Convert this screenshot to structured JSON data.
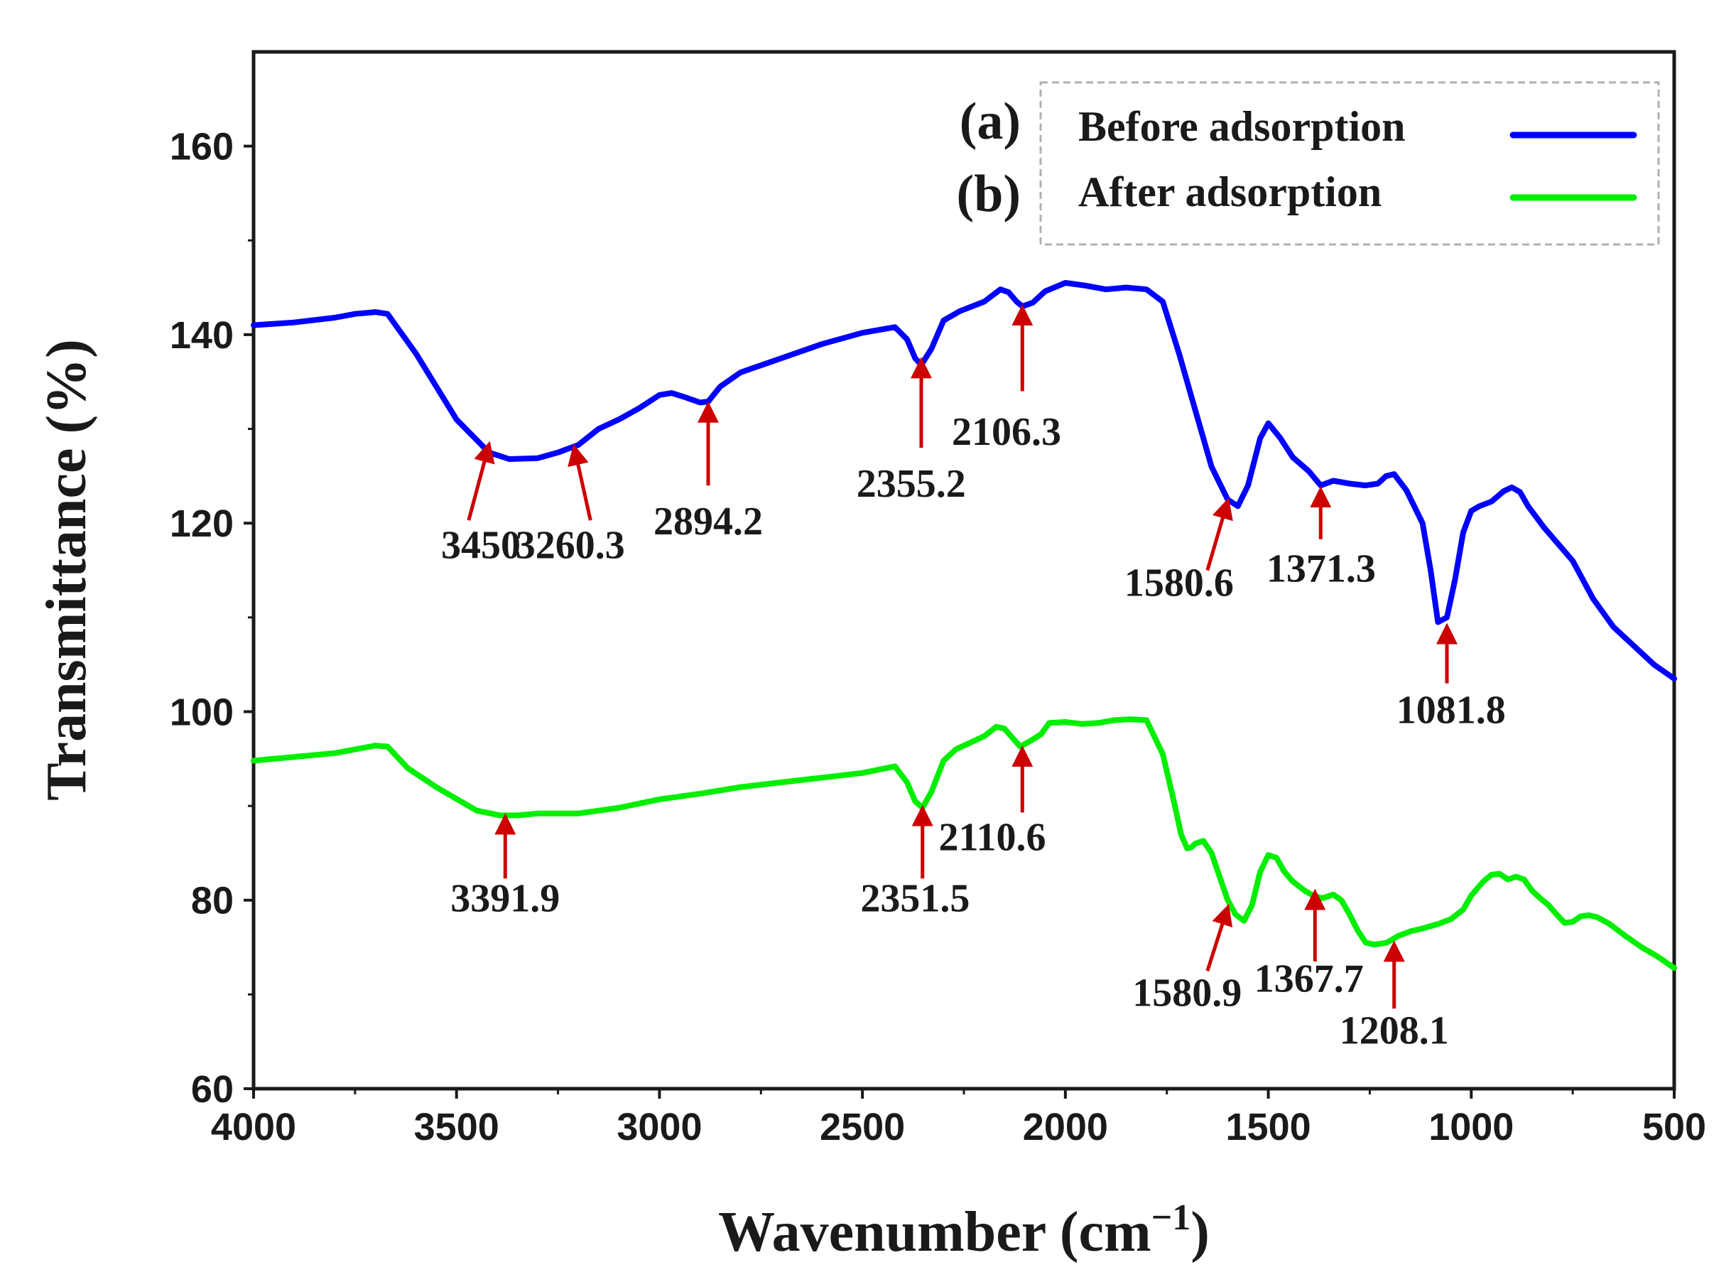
{
  "chart_data": {
    "type": "line",
    "xlabel_main": "Wavenumber (cm",
    "xlabel_sup": "−1",
    "xlabel_end": ")",
    "ylabel": "Transmittance (%)",
    "xlim": [
      4000,
      500
    ],
    "ylim": [
      60,
      170
    ],
    "xticks": [
      4000,
      3500,
      3000,
      2500,
      2000,
      1500,
      1000,
      500
    ],
    "yticks": [
      60,
      80,
      100,
      120,
      140,
      160
    ],
    "series": [
      {
        "name": "Before adsorption",
        "key": "(a)",
        "color": "#0000ff",
        "x": [
          4000,
          3900,
          3800,
          3750,
          3700,
          3670,
          3600,
          3500,
          3420,
          3370,
          3300,
          3250,
          3200,
          3150,
          3100,
          3050,
          3000,
          2970,
          2940,
          2900,
          2880,
          2850,
          2800,
          2700,
          2600,
          2500,
          2420,
          2390,
          2370,
          2355,
          2330,
          2300,
          2260,
          2200,
          2160,
          2140,
          2120,
          2106,
          2080,
          2050,
          2000,
          1950,
          1900,
          1850,
          1800,
          1760,
          1720,
          1680,
          1640,
          1600,
          1575,
          1550,
          1520,
          1500,
          1470,
          1440,
          1400,
          1371,
          1340,
          1300,
          1260,
          1230,
          1210,
          1190,
          1160,
          1120,
          1100,
          1082,
          1060,
          1040,
          1020,
          1000,
          980,
          950,
          920,
          900,
          880,
          860,
          820,
          780,
          750,
          700,
          650,
          600,
          550,
          500
        ],
        "y": [
          141,
          141.3,
          141.8,
          142.2,
          142.4,
          142.2,
          138,
          131,
          127.5,
          126.8,
          126.9,
          127.5,
          128.3,
          130,
          131,
          132.2,
          133.6,
          133.8,
          133.4,
          132.8,
          132.9,
          134.5,
          136,
          137.5,
          139,
          140.2,
          140.8,
          139.5,
          137.5,
          136.8,
          138.5,
          141.5,
          142.5,
          143.5,
          144.8,
          144.5,
          143.5,
          143,
          143.4,
          144.6,
          145.5,
          145.2,
          144.8,
          145,
          144.8,
          143.5,
          138,
          132,
          126,
          122.5,
          121.8,
          124,
          129,
          130.6,
          129,
          127,
          125.5,
          124,
          124.5,
          124.2,
          124,
          124.2,
          125,
          125.2,
          123.5,
          120,
          115,
          109.5,
          110,
          114,
          119,
          121.3,
          121.8,
          122.3,
          123.4,
          123.8,
          123.3,
          121.8,
          119.5,
          117.5,
          116,
          112,
          109,
          107,
          105,
          103.5
        ]
      },
      {
        "name": "After adsorption",
        "key": "(b)",
        "color": "#00ee00",
        "x": [
          4000,
          3900,
          3800,
          3750,
          3700,
          3670,
          3620,
          3550,
          3450,
          3392,
          3350,
          3300,
          3200,
          3100,
          3000,
          2900,
          2800,
          2700,
          2600,
          2500,
          2420,
          2390,
          2370,
          2352,
          2330,
          2300,
          2270,
          2230,
          2200,
          2170,
          2150,
          2130,
          2111,
          2090,
          2060,
          2040,
          2000,
          1960,
          1920,
          1880,
          1840,
          1800,
          1760,
          1730,
          1715,
          1700,
          1690,
          1680,
          1660,
          1640,
          1620,
          1600,
          1581,
          1560,
          1540,
          1520,
          1500,
          1480,
          1460,
          1440,
          1410,
          1390,
          1368,
          1340,
          1320,
          1300,
          1280,
          1260,
          1240,
          1220,
          1208,
          1180,
          1150,
          1120,
          1080,
          1050,
          1020,
          1000,
          970,
          950,
          930,
          910,
          890,
          870,
          850,
          830,
          810,
          790,
          770,
          750,
          730,
          710,
          690,
          660,
          620,
          580,
          540,
          500
        ],
        "y": [
          94.8,
          95.2,
          95.6,
          96,
          96.4,
          96.3,
          94,
          92,
          89.5,
          89,
          89,
          89.2,
          89.2,
          89.8,
          90.7,
          91.3,
          92,
          92.5,
          93,
          93.5,
          94.2,
          92.5,
          90.5,
          89.8,
          91.5,
          94.8,
          96,
          96.8,
          97.4,
          98.4,
          98.2,
          97.2,
          96.3,
          96.8,
          97.6,
          98.8,
          98.9,
          98.7,
          98.8,
          99.1,
          99.2,
          99.1,
          95.5,
          90,
          87,
          85.5,
          85.6,
          86,
          86.3,
          85,
          82.5,
          80,
          78.5,
          77.8,
          79.5,
          83,
          84.8,
          84.5,
          83,
          82,
          81,
          80.5,
          80.2,
          80.6,
          80,
          78.5,
          76.8,
          75.5,
          75.3,
          75.4,
          75.5,
          76.2,
          76.7,
          77,
          77.5,
          78,
          79,
          80.5,
          82,
          82.7,
          82.8,
          82.2,
          82.5,
          82.2,
          81,
          80.2,
          79.5,
          78.5,
          77.6,
          77.7,
          78.3,
          78.4,
          78.2,
          77.5,
          76.2,
          75,
          74,
          72.8
        ]
      }
    ],
    "annotations": [
      {
        "label": "3450",
        "x": 3420,
        "y": 128.8,
        "text_x": 3440,
        "text_y": 116.3,
        "tail_x": 3470,
        "tail_y": 120.3
      },
      {
        "label": "3260.3",
        "x": 3210,
        "y": 128.5,
        "text_x": 3220,
        "text_y": 116.3,
        "tail_x": 3170,
        "tail_y": 120.3
      },
      {
        "label": "2894.2",
        "x": 2880,
        "y": 133,
        "text_x": 2880,
        "text_y": 118.8,
        "tail_x": 2880,
        "tail_y": 124
      },
      {
        "label": "2355.2",
        "x": 2355,
        "y": 137.7,
        "text_x": 2380,
        "text_y": 122.8,
        "tail_x": 2355,
        "tail_y": 128
      },
      {
        "label": "2106.3",
        "x": 2106,
        "y": 143.3,
        "text_x": 2145,
        "text_y": 128.3,
        "tail_x": 2106,
        "tail_y": 134
      },
      {
        "label": "1580.6",
        "x": 1600,
        "y": 122.8,
        "text_x": 1720,
        "text_y": 112.3,
        "tail_x": 1650,
        "tail_y": 115
      },
      {
        "label": "1371.3",
        "x": 1371,
        "y": 124,
        "text_x": 1370,
        "text_y": 113.8,
        "tail_x": 1371,
        "tail_y": 118.3
      },
      {
        "label": "1081.8",
        "x": 1060,
        "y": 109.5,
        "text_x": 1050,
        "text_y": 98.8,
        "tail_x": 1060,
        "tail_y": 103
      },
      {
        "label": "3391.9",
        "x": 3380,
        "y": 89.3,
        "text_x": 3380,
        "text_y": 78.8,
        "tail_x": 3380,
        "tail_y": 82.3
      },
      {
        "label": "2351.5",
        "x": 2352,
        "y": 90.2,
        "text_x": 2370,
        "text_y": 78.8,
        "tail_x": 2352,
        "tail_y": 82.3
      },
      {
        "label": "2110.6",
        "x": 2106,
        "y": 96.5,
        "text_x": 2180,
        "text_y": 85.3,
        "tail_x": 2106,
        "tail_y": 89.3
      },
      {
        "label": "1580.9",
        "x": 1600,
        "y": 79.7,
        "text_x": 1700,
        "text_y": 68.8,
        "tail_x": 1650,
        "tail_y": 72.5
      },
      {
        "label": "1367.7",
        "x": 1385,
        "y": 81.3,
        "text_x": 1400,
        "text_y": 70.3,
        "tail_x": 1385,
        "tail_y": 73.5
      },
      {
        "label": "1208.1",
        "x": 1190,
        "y": 75.8,
        "text_x": 1190,
        "text_y": 64.8,
        "tail_x": 1190,
        "tail_y": 68.5
      }
    ],
    "legend_position": "top-right",
    "grid": false
  }
}
